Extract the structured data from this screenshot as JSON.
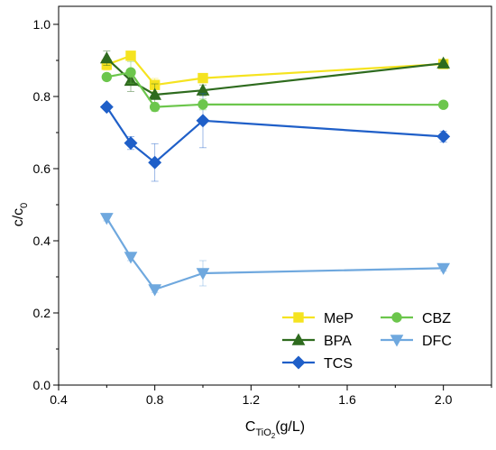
{
  "chart_data": {
    "type": "line",
    "title": "",
    "xlabel": {
      "main": "C",
      "sub": "TiO",
      "sub2": "2",
      "suffix": "(g/L)"
    },
    "ylabel": {
      "main": "c/c",
      "sub": "0"
    },
    "xlim": [
      0.4,
      2.2
    ],
    "ylim": [
      0.0,
      1.05
    ],
    "xticks": [
      0.4,
      0.8,
      1.2,
      1.6,
      2.0
    ],
    "xtick_labels": [
      "0.4",
      "0.8",
      "1.2",
      "1.6",
      "2.0"
    ],
    "yticks": [
      0.0,
      0.2,
      0.4,
      0.6,
      0.8,
      1.0
    ],
    "ytick_labels": [
      "0.0",
      "0.2",
      "0.4",
      "0.6",
      "0.8",
      "1.0"
    ],
    "grid": false,
    "legend_position": "bottom-right",
    "x": [
      0.6,
      0.7,
      0.8,
      1.0,
      2.0
    ],
    "series": [
      {
        "name": "MeP",
        "color": "#f5e320",
        "marker": "square",
        "values": [
          0.888,
          0.913,
          0.832,
          0.851,
          0.89
        ],
        "errors": [
          0.015,
          0.01,
          0.018,
          0.01,
          0.008
        ]
      },
      {
        "name": "BPA",
        "color": "#2e6b1e",
        "marker": "triangle-up",
        "values": [
          0.906,
          0.844,
          0.805,
          0.817,
          0.892
        ],
        "errors": [
          0.02,
          0.03,
          0.03,
          0.015,
          0.008
        ]
      },
      {
        "name": "TCS",
        "color": "#1f5fc8",
        "marker": "diamond",
        "values": [
          0.771,
          0.671,
          0.617,
          0.733,
          0.689
        ],
        "errors": [
          0.008,
          0.018,
          0.052,
          0.075,
          0.015
        ]
      },
      {
        "name": "CBZ",
        "color": "#6cc64c",
        "marker": "circle",
        "values": [
          0.854,
          0.867,
          0.771,
          0.778,
          0.777
        ],
        "errors": [
          0.01,
          0.03,
          0.012,
          0.015,
          0.008
        ]
      },
      {
        "name": "DFC",
        "color": "#6fa8de",
        "marker": "triangle-down",
        "values": [
          0.463,
          0.355,
          0.265,
          0.31,
          0.324
        ],
        "errors": [
          0.008,
          0.01,
          0.008,
          0.035,
          0.008
        ]
      }
    ],
    "legend_order": [
      [
        "MeP",
        "CBZ"
      ],
      [
        "BPA",
        "DFC"
      ],
      [
        "TCS"
      ]
    ]
  }
}
